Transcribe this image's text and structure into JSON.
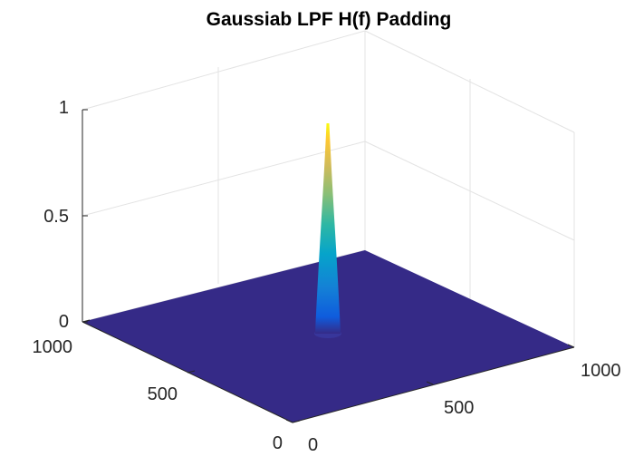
{
  "chart_data": {
    "type": "surface3d",
    "title": "Gaussiab LPF H(f) Padding",
    "xlabel": "",
    "ylabel": "",
    "zlabel": "",
    "x_ticks": [
      "0",
      "500",
      "1000"
    ],
    "y_ticks": [
      "0",
      "500",
      "1000"
    ],
    "z_ticks": [
      "0",
      "0.5",
      "1"
    ],
    "xlim": [
      0,
      1024
    ],
    "ylim": [
      0,
      1024
    ],
    "zlim": [
      0,
      1
    ],
    "grid": true,
    "colormap": "parula",
    "surface": {
      "function": "gaussian",
      "center": [
        512,
        512
      ],
      "peak": 1,
      "base": 0,
      "floor_color": "#352a87",
      "peak_color": "#f9fb0e"
    }
  }
}
